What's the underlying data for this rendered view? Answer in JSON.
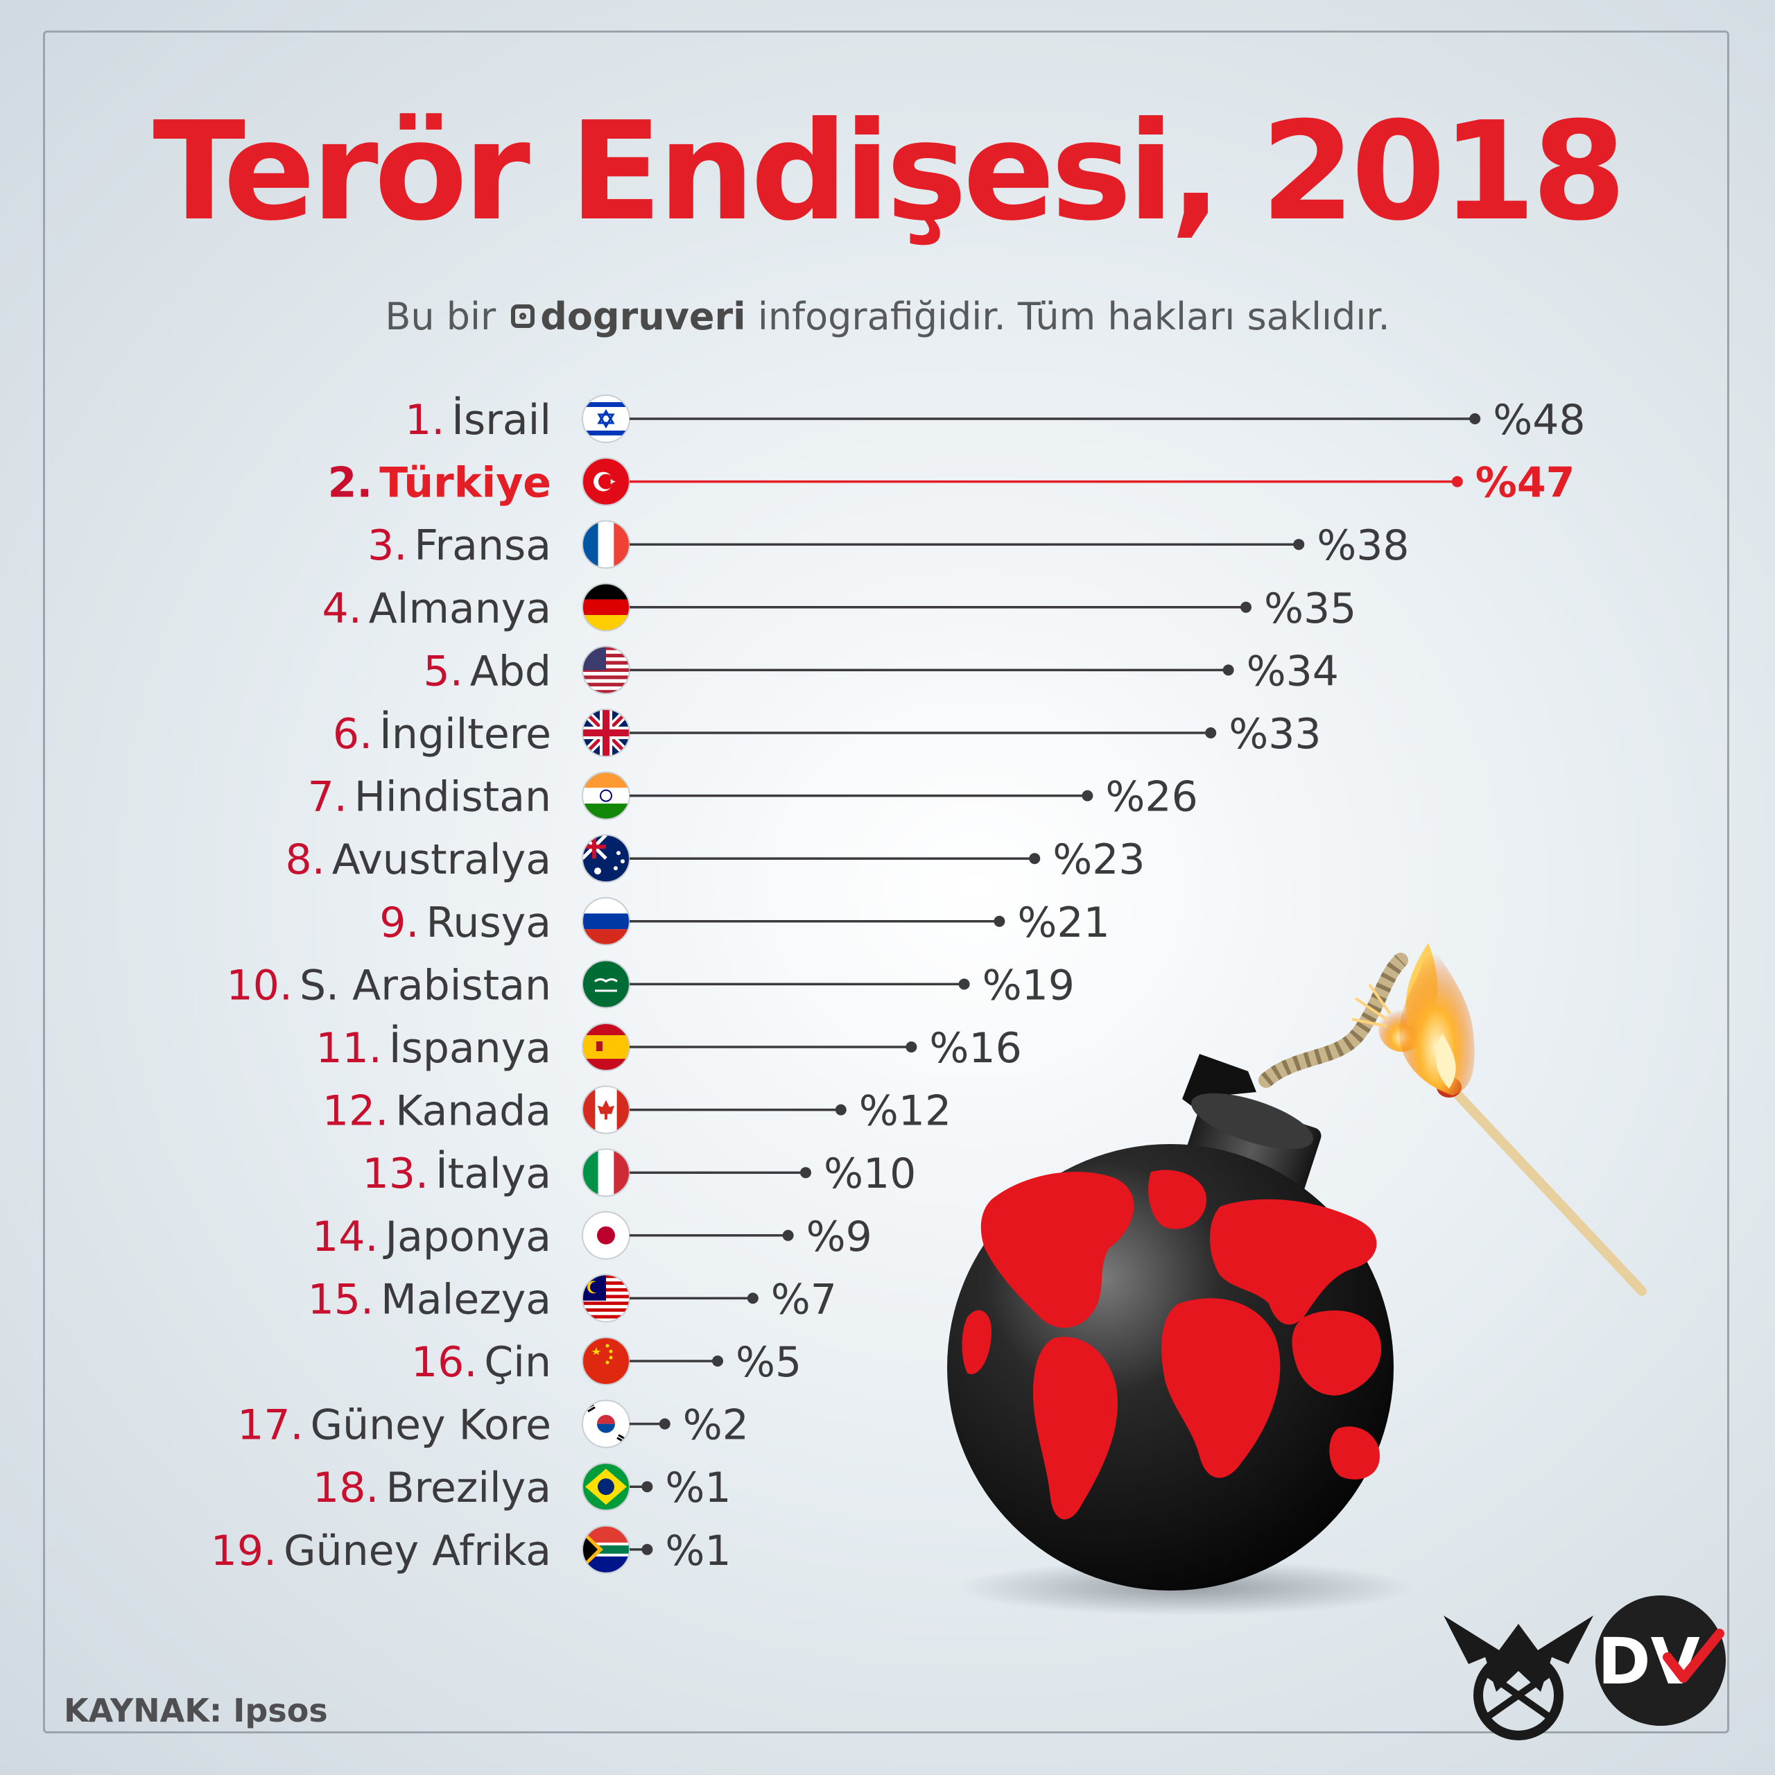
{
  "title": "Terör Endişesi, 2018",
  "credit": {
    "prefix": "Bu bir",
    "brand": "dogruveri",
    "suffix": "infografiğidir. Tüm hakları saklıdır."
  },
  "source": "KAYNAK: Ipsos",
  "logo_text": "DV",
  "colors": {
    "accent": "#e31e26",
    "text": "#3b3b3d",
    "line": "#3b3b3d"
  },
  "chart_data": {
    "type": "bar",
    "style": "lollipop",
    "title": "Terör Endişesi, 2018",
    "unit_prefix": "%",
    "highlight": "Türkiye",
    "rows": [
      {
        "rank": "1.",
        "country": "İsrail",
        "value": 48,
        "label": "%48",
        "flag": "israel"
      },
      {
        "rank": "2.",
        "country": "Türkiye",
        "value": 47,
        "label": "%47",
        "flag": "turkey"
      },
      {
        "rank": "3.",
        "country": "Fransa",
        "value": 38,
        "label": "%38",
        "flag": "france"
      },
      {
        "rank": "4.",
        "country": "Almanya",
        "value": 35,
        "label": "%35",
        "flag": "germany"
      },
      {
        "rank": "5.",
        "country": "Abd",
        "value": 34,
        "label": "%34",
        "flag": "usa"
      },
      {
        "rank": "6.",
        "country": "İngiltere",
        "value": 33,
        "label": "%33",
        "flag": "uk"
      },
      {
        "rank": "7.",
        "country": "Hindistan",
        "value": 26,
        "label": "%26",
        "flag": "india"
      },
      {
        "rank": "8.",
        "country": "Avustralya",
        "value": 23,
        "label": "%23",
        "flag": "australia"
      },
      {
        "rank": "9.",
        "country": "Rusya",
        "value": 21,
        "label": "%21",
        "flag": "russia"
      },
      {
        "rank": "10.",
        "country": "S. Arabistan",
        "value": 19,
        "label": "%19",
        "flag": "saudi-arabia"
      },
      {
        "rank": "11.",
        "country": "İspanya",
        "value": 16,
        "label": "%16",
        "flag": "spain"
      },
      {
        "rank": "12.",
        "country": "Kanada",
        "value": 12,
        "label": "%12",
        "flag": "canada"
      },
      {
        "rank": "13.",
        "country": "İtalya",
        "value": 10,
        "label": "%10",
        "flag": "italy"
      },
      {
        "rank": "14.",
        "country": "Japonya",
        "value": 9,
        "label": "%9",
        "flag": "japan"
      },
      {
        "rank": "15.",
        "country": "Malezya",
        "value": 7,
        "label": "%7",
        "flag": "malaysia"
      },
      {
        "rank": "16.",
        "country": "Çin",
        "value": 5,
        "label": "%5",
        "flag": "china"
      },
      {
        "rank": "17.",
        "country": "Güney Kore",
        "value": 2,
        "label": "%2",
        "flag": "south-korea"
      },
      {
        "rank": "18.",
        "country": "Brezilya",
        "value": 1,
        "label": "%1",
        "flag": "brazil"
      },
      {
        "rank": "19.",
        "country": "Güney Afrika",
        "value": 1,
        "label": "%1",
        "flag": "south-africa"
      }
    ]
  }
}
